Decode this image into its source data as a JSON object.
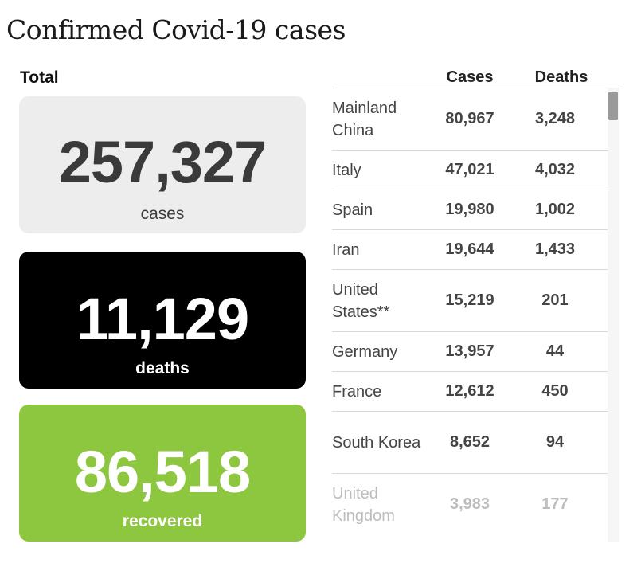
{
  "title": "Confirmed Covid-19 cases",
  "total_label": "Total",
  "cards": {
    "cases": {
      "value": "257,327",
      "label": "cases"
    },
    "deaths": {
      "value": "11,129",
      "label": "deaths"
    },
    "recovered": {
      "value": "86,518",
      "label": "recovered"
    }
  },
  "table": {
    "headers": {
      "cases": "Cases",
      "deaths": "Deaths"
    },
    "rows": [
      {
        "country": "Mainland China",
        "cases": "80,967",
        "deaths": "3,248"
      },
      {
        "country": "Italy",
        "cases": "47,021",
        "deaths": "4,032"
      },
      {
        "country": "Spain",
        "cases": "19,980",
        "deaths": "1,002"
      },
      {
        "country": "Iran",
        "cases": "19,644",
        "deaths": "1,433"
      },
      {
        "country": "United States**",
        "cases": "15,219",
        "deaths": "201"
      },
      {
        "country": "Germany",
        "cases": "13,957",
        "deaths": "44"
      },
      {
        "country": "France",
        "cases": "12,612",
        "deaths": "450"
      },
      {
        "country": "South Korea",
        "cases": "8,652",
        "deaths": "94"
      },
      {
        "country": "United Kingdom",
        "cases": "3,983",
        "deaths": "177"
      }
    ]
  },
  "colors": {
    "cases_card": "#ededed",
    "deaths_card": "#000000",
    "recovered_card": "#8dc63f"
  }
}
